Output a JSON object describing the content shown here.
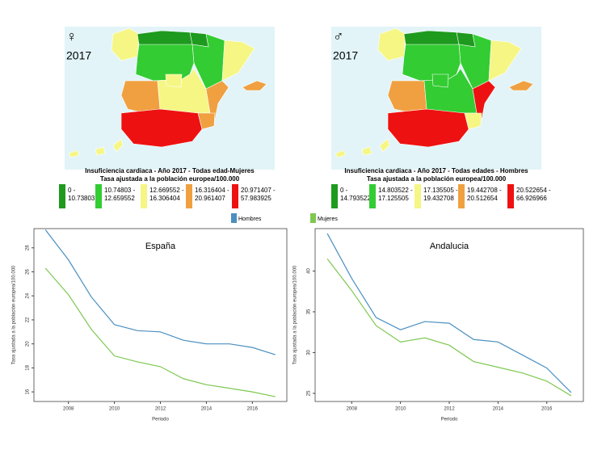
{
  "chart_data": [
    {
      "type": "map",
      "symbol": "♀",
      "year": 2017,
      "title": "Insuficiencia cardiaca - Año 2017 - Todas edad-Mujeres",
      "subtitle": "Tasa ajustada a la población europea/100.000",
      "legend": [
        {
          "label": "0 - 10.73803",
          "color": "#1e9a1e"
        },
        {
          "label": "10.74803 - 12.659552",
          "color": "#33cc33"
        },
        {
          "label": "12.669552 - 16.306404",
          "color": "#f6f685"
        },
        {
          "label": "16.316404 - 20.961407",
          "color": "#f0a040"
        },
        {
          "label": "20.971407 - 57.983925",
          "color": "#ee1111"
        }
      ]
    },
    {
      "type": "map",
      "symbol": "♂",
      "year": 2017,
      "title": "Insuficiencia cardiaca - Año 2017 - Todas edades - Hombres",
      "subtitle": "Tasa ajustada a la población europea/100.000",
      "legend": [
        {
          "label": "0 - 14.793522",
          "color": "#1e9a1e"
        },
        {
          "label": "14.803522 - 17.125505",
          "color": "#33cc33"
        },
        {
          "label": "17.135505 - 19.432708",
          "color": "#f6f685"
        },
        {
          "label": "19.442708 - 20.512654",
          "color": "#f0a040"
        },
        {
          "label": "20.522654 - 66.926966",
          "color": "#ee1111"
        }
      ]
    },
    {
      "type": "line",
      "title": "España",
      "xlabel": "Periodo",
      "ylabel": "Tasa ajustada a la población europea/100.000",
      "x": [
        2007,
        2008,
        2009,
        2010,
        2011,
        2012,
        2013,
        2014,
        2015,
        2016,
        2017
      ],
      "series": [
        {
          "name": "Hombres",
          "color": "#4a8fc0",
          "values": [
            29.5,
            27.0,
            23.9,
            21.6,
            21.1,
            21.0,
            20.3,
            20.0,
            20.0,
            19.7,
            19.1
          ]
        },
        {
          "name": "Mujeres",
          "color": "#7ec850",
          "values": [
            26.3,
            24.1,
            21.2,
            19.0,
            18.5,
            18.1,
            17.1,
            16.6,
            16.3,
            16.0,
            15.6
          ]
        }
      ],
      "xlim": [
        2006.5,
        2017.5
      ],
      "ylim": [
        15.2,
        29.6
      ],
      "xticks": [
        2008,
        2010,
        2012,
        2014,
        2016
      ],
      "yticks": [
        16,
        18,
        20,
        22,
        24,
        26,
        28
      ]
    },
    {
      "type": "line",
      "title": "Andalucia",
      "xlabel": "Periodo",
      "ylabel": "Tasa ajustada a la población europea/100.000",
      "x": [
        2007,
        2008,
        2009,
        2010,
        2011,
        2012,
        2013,
        2014,
        2015,
        2016,
        2017
      ],
      "series": [
        {
          "color": "#4a8fc0",
          "values": [
            44.6,
            39.1,
            34.3,
            32.8,
            33.8,
            33.6,
            31.6,
            31.3,
            29.7,
            28.1,
            25.1
          ]
        },
        {
          "color": "#7ec850",
          "values": [
            41.5,
            37.6,
            33.3,
            31.3,
            31.8,
            30.9,
            28.9,
            28.2,
            27.5,
            26.5,
            24.7
          ]
        }
      ],
      "xlim": [
        2006.5,
        2017.5
      ],
      "ylim": [
        24,
        45.2
      ],
      "xticks": [
        2008,
        2010,
        2012,
        2014,
        2016
      ],
      "yticks": [
        25,
        30,
        35,
        40
      ]
    }
  ]
}
